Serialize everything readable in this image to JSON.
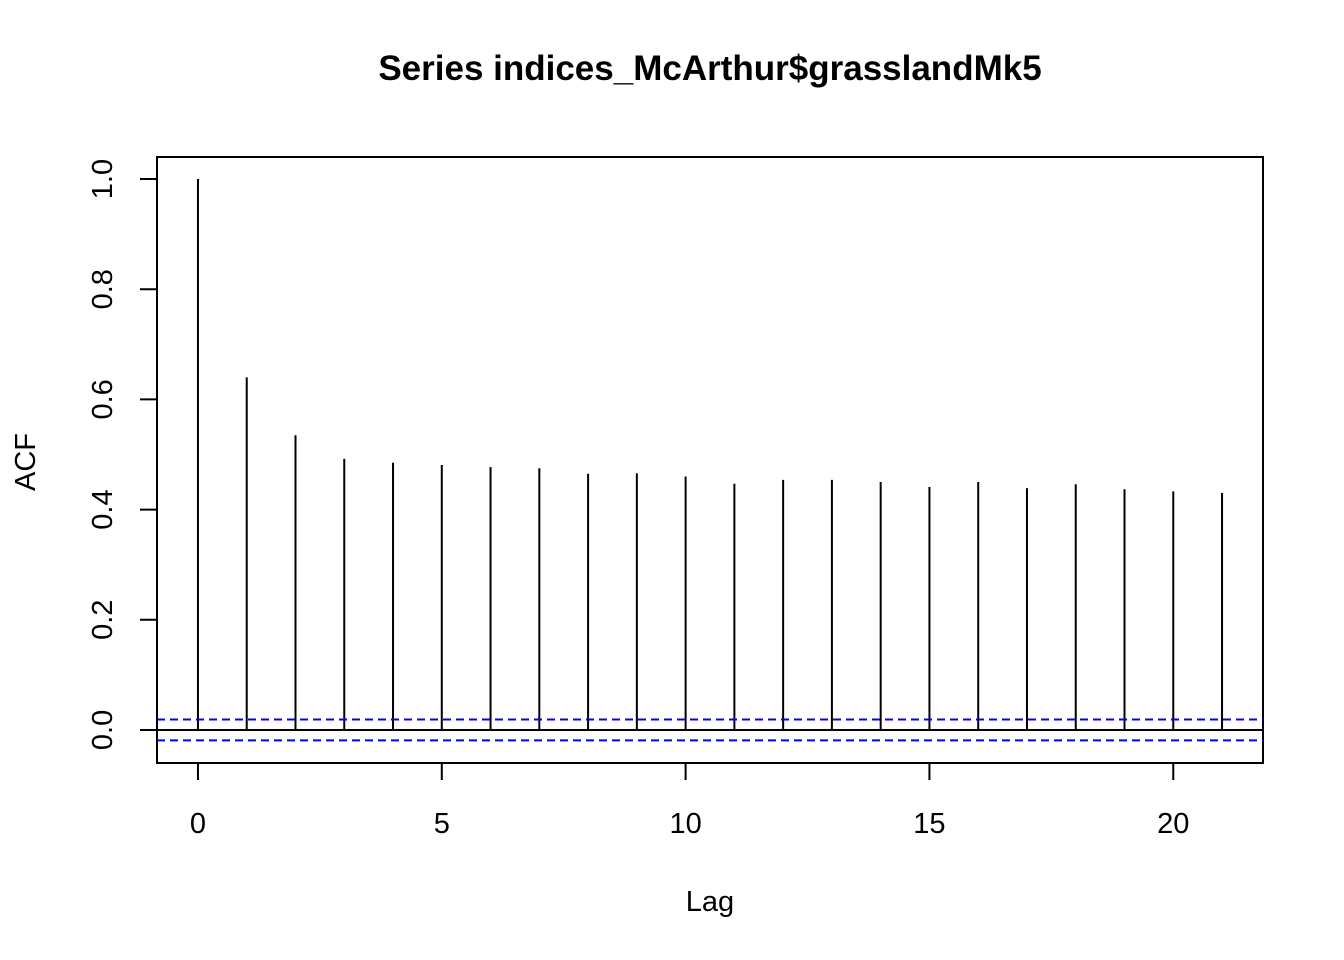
{
  "chart_data": {
    "type": "bar",
    "subtype": "acf-lollipop",
    "title": "Series  indices_McArthur$grasslandMk5",
    "xlabel": "Lag",
    "ylabel": "ACF",
    "xlim": [
      -0.84,
      21.84
    ],
    "ylim": [
      -0.06,
      1.04
    ],
    "x_ticks": [
      0,
      5,
      10,
      15,
      20
    ],
    "y_ticks": [
      0.0,
      0.2,
      0.4,
      0.6,
      0.8,
      1.0
    ],
    "x_tick_labels": [
      "0",
      "5",
      "10",
      "15",
      "20"
    ],
    "y_tick_labels": [
      "0.0",
      "0.2",
      "0.4",
      "0.6",
      "0.8",
      "1.0"
    ],
    "grid": false,
    "x": [
      0,
      1,
      2,
      3,
      4,
      5,
      6,
      7,
      8,
      9,
      10,
      11,
      12,
      13,
      14,
      15,
      16,
      17,
      18,
      19,
      20,
      21
    ],
    "values": [
      1.0,
      0.64,
      0.535,
      0.492,
      0.485,
      0.481,
      0.477,
      0.475,
      0.465,
      0.466,
      0.46,
      0.447,
      0.454,
      0.454,
      0.45,
      0.441,
      0.45,
      0.439,
      0.446,
      0.437,
      0.433,
      0.43
    ],
    "confidence_bound": 0.019,
    "colors": {
      "bars": "#000000",
      "confidence": "#0000ff",
      "axes": "#000000"
    }
  }
}
